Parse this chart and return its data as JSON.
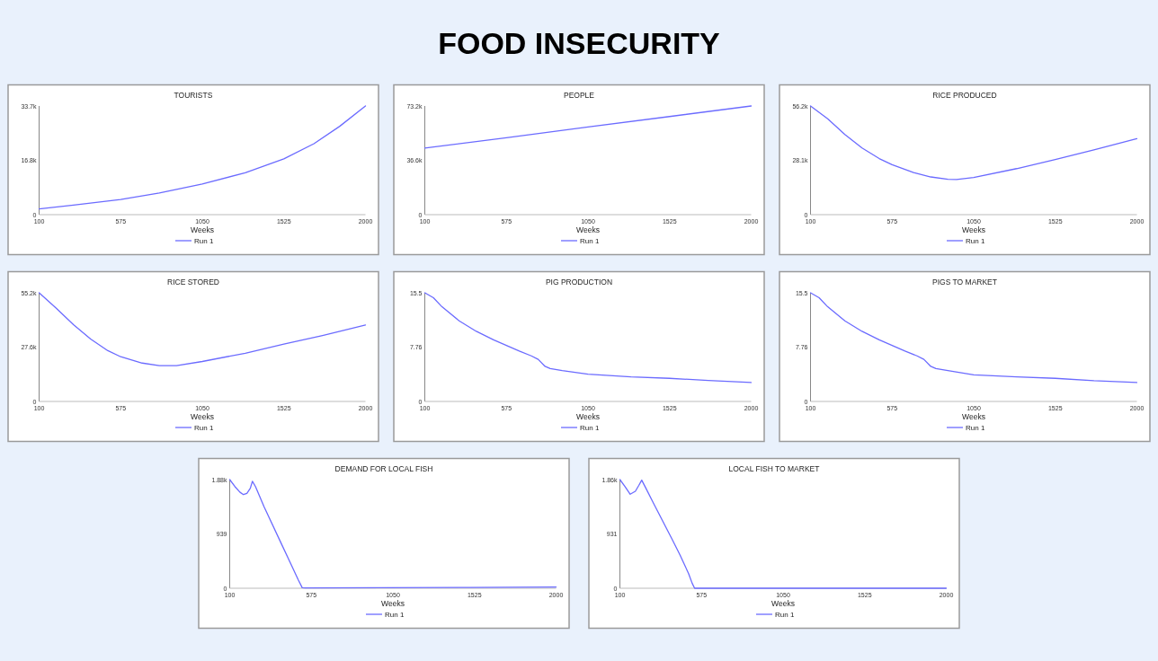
{
  "chart_data": [
    {
      "type": "other",
      "title": "FOOD INSECURITY"
    },
    {
      "type": "line",
      "title": "TOURISTS",
      "xlabel": "Weeks",
      "xlim": [
        100,
        2000
      ],
      "xticks": [
        100,
        575,
        1050,
        1525,
        2000
      ],
      "ylim": [
        0,
        33700
      ],
      "yticks": [
        0,
        {
          "value": 16850,
          "label": "16.8k"
        },
        {
          "value": 33700,
          "label": "33.7k"
        }
      ],
      "grid": false,
      "legend": "bottom",
      "series": [
        {
          "name": "Run 1",
          "color": "#6b6bff",
          "x": [
            100,
            300,
            575,
            800,
            1050,
            1300,
            1525,
            1700,
            1850,
            2000
          ],
          "values": [
            1800,
            2950,
            4700,
            6700,
            9500,
            13000,
            17300,
            22000,
            27400,
            33700
          ]
        }
      ]
    },
    {
      "type": "line",
      "title": "PEOPLE",
      "xlabel": "Weeks",
      "xlim": [
        100,
        2000
      ],
      "xticks": [
        100,
        575,
        1050,
        1525,
        2000
      ],
      "ylim": [
        0,
        73200
      ],
      "yticks": [
        0,
        {
          "value": 36600,
          "label": "36.6k"
        },
        {
          "value": 73200,
          "label": "73.2k"
        }
      ],
      "grid": false,
      "legend": "bottom",
      "series": [
        {
          "name": "Run 1",
          "color": "#6b6bff",
          "x": [
            100,
            575,
            1050,
            1525,
            2000
          ],
          "values": [
            44900,
            51800,
            59000,
            66100,
            73200
          ]
        }
      ]
    },
    {
      "type": "line",
      "title": "RICE PRODUCED",
      "xlabel": "Weeks",
      "xlim": [
        100,
        2000
      ],
      "xticks": [
        100,
        575,
        1050,
        1525,
        2000
      ],
      "ylim": [
        0,
        56200
      ],
      "yticks": [
        0,
        {
          "value": 28100,
          "label": "28.1k"
        },
        {
          "value": 56200,
          "label": "56.2k"
        }
      ],
      "grid": false,
      "legend": "bottom",
      "series": [
        {
          "name": "Run 1",
          "color": "#6b6bff",
          "x": [
            100,
            200,
            300,
            400,
            500,
            575,
            700,
            800,
            900,
            950,
            1050,
            1300,
            1525,
            1750,
            2000
          ],
          "values": [
            56200,
            49600,
            41500,
            34500,
            29000,
            25800,
            21800,
            19500,
            18300,
            18200,
            19200,
            23800,
            28500,
            33500,
            39300
          ]
        }
      ]
    },
    {
      "type": "line",
      "title": "RICE STORED",
      "xlabel": "Weeks",
      "xlim": [
        100,
        2000
      ],
      "xticks": [
        100,
        575,
        1050,
        1525,
        2000
      ],
      "ylim": [
        0,
        55200
      ],
      "yticks": [
        0,
        {
          "value": 27600,
          "label": "27.6k"
        },
        {
          "value": 55200,
          "label": "55.2k"
        }
      ],
      "grid": false,
      "legend": "bottom",
      "series": [
        {
          "name": "Run 1",
          "color": "#6b6bff",
          "x": [
            100,
            200,
            300,
            400,
            500,
            575,
            700,
            800,
            900,
            1050,
            1300,
            1525,
            1750,
            2000
          ],
          "values": [
            55200,
            47300,
            39000,
            31700,
            25800,
            22700,
            19500,
            18200,
            18200,
            20300,
            24500,
            29100,
            33500,
            38800
          ]
        }
      ]
    },
    {
      "type": "line",
      "title": "PIG PRODUCTION",
      "xlabel": "Weeks",
      "xlim": [
        100,
        2000
      ],
      "xticks": [
        100,
        575,
        1050,
        1525,
        2000
      ],
      "ylim": [
        0,
        15.5
      ],
      "yticks": [
        0,
        7.76,
        15.5
      ],
      "grid": false,
      "legend": "bottom",
      "series": [
        {
          "name": "Run 1",
          "color": "#6b6bff",
          "x": [
            100,
            150,
            200,
            300,
            400,
            500,
            575,
            650,
            720,
            760,
            800,
            830,
            900,
            1050,
            1300,
            1525,
            1750,
            2000
          ],
          "values": [
            15.5,
            14.8,
            13.5,
            11.5,
            10,
            8.8,
            8,
            7.2,
            6.5,
            6,
            5,
            4.7,
            4.4,
            3.9,
            3.5,
            3.3,
            3,
            2.7
          ]
        }
      ]
    },
    {
      "type": "line",
      "title": "PIGS TO MARKET",
      "xlabel": "Weeks",
      "xlim": [
        100,
        2000
      ],
      "xticks": [
        100,
        575,
        1050,
        1525,
        2000
      ],
      "ylim": [
        0,
        15.5
      ],
      "yticks": [
        0,
        7.76,
        15.5
      ],
      "grid": false,
      "legend": "bottom",
      "series": [
        {
          "name": "Run 1",
          "color": "#6b6bff",
          "x": [
            100,
            150,
            200,
            300,
            400,
            500,
            575,
            650,
            720,
            760,
            800,
            830,
            900,
            1050,
            1300,
            1525,
            1750,
            2000
          ],
          "values": [
            15.5,
            14.8,
            13.5,
            11.5,
            10,
            8.8,
            8,
            7.2,
            6.5,
            6,
            5,
            4.7,
            4.4,
            3.8,
            3.5,
            3.3,
            2.95,
            2.7
          ]
        }
      ]
    },
    {
      "type": "line",
      "title": "DEMAND FOR LOCAL FISH",
      "xlabel": "Weeks",
      "xlim": [
        100,
        2000
      ],
      "xticks": [
        100,
        575,
        1050,
        1525,
        2000
      ],
      "ylim": [
        0,
        1880
      ],
      "yticks": [
        0,
        {
          "value": 939,
          "label": "939"
        },
        {
          "value": 1880,
          "label": "1.88k"
        }
      ],
      "grid": false,
      "legend": "bottom",
      "series": [
        {
          "name": "Run 1",
          "color": "#6b6bff",
          "x": [
            100,
            130,
            160,
            180,
            200,
            220,
            232,
            250,
            300,
            400,
            450,
            500,
            522,
            540,
            1000,
            1500,
            2000
          ],
          "values": [
            1880,
            1760,
            1660,
            1620,
            1640,
            1730,
            1850,
            1760,
            1410,
            775,
            458,
            140,
            10,
            5,
            10,
            15,
            20
          ]
        }
      ]
    },
    {
      "type": "line",
      "title": "LOCAL FISH TO MARKET",
      "xlabel": "Weeks",
      "xlim": [
        100,
        2000
      ],
      "xticks": [
        100,
        575,
        1050,
        1525,
        2000
      ],
      "ylim": [
        0,
        1860
      ],
      "yticks": [
        0,
        {
          "value": 931,
          "label": "931"
        },
        {
          "value": 1860,
          "label": "1.86k"
        }
      ],
      "grid": false,
      "legend": "bottom",
      "series": [
        {
          "name": "Run 1",
          "color": "#6b6bff",
          "x": [
            100,
            130,
            160,
            190,
            210,
            227,
            250,
            300,
            400,
            450,
            500,
            520,
            535,
            575,
            2000
          ],
          "values": [
            1860,
            1740,
            1610,
            1660,
            1760,
            1850,
            1720,
            1430,
            860,
            570,
            250,
            90,
            0,
            0,
            0
          ]
        }
      ]
    }
  ]
}
